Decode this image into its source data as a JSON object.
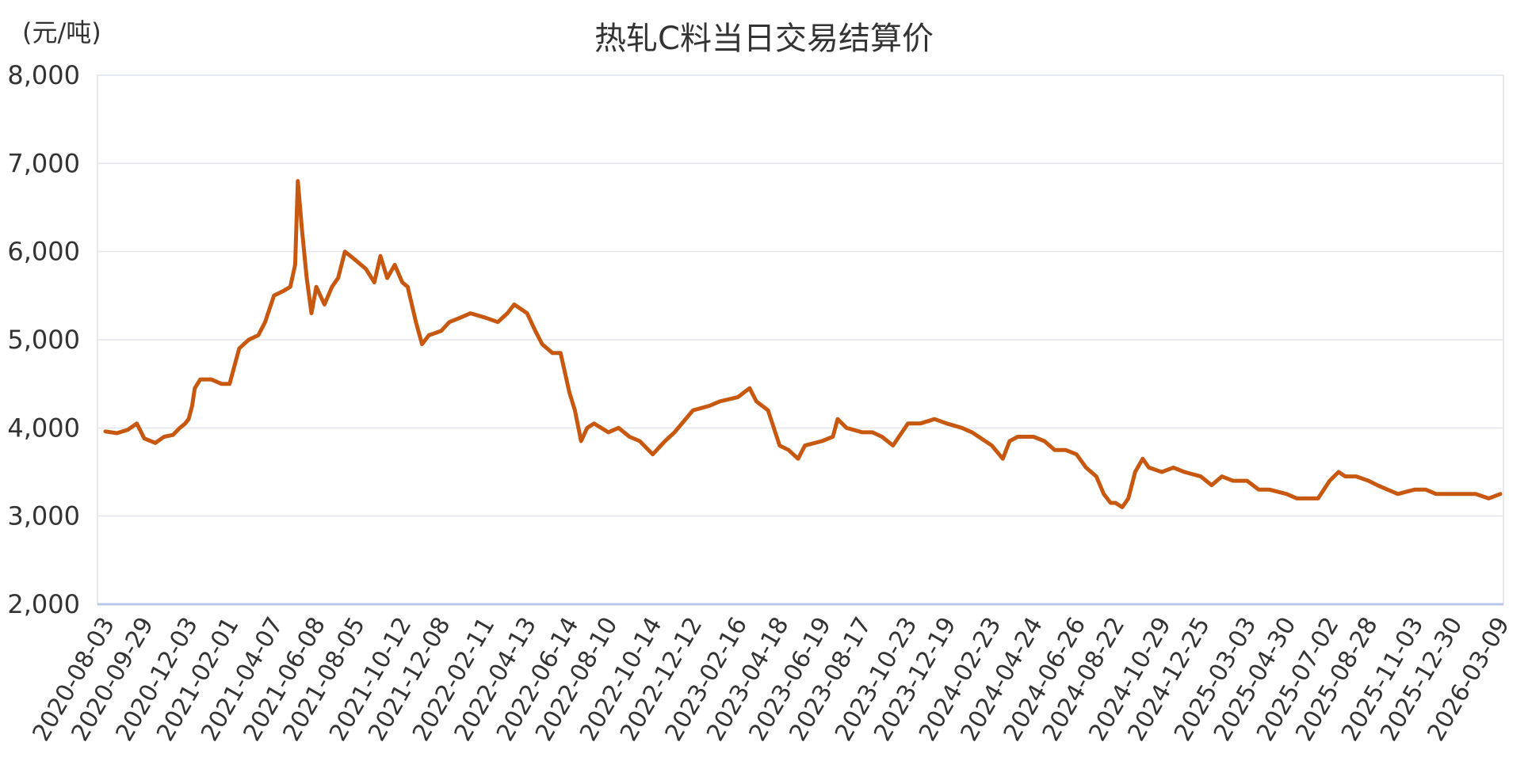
{
  "chart_data": {
    "type": "line",
    "title": "热轧C料当日交易结算价",
    "unit_label": "(元/吨)",
    "ylim": [
      2000,
      8000
    ],
    "y_ticks": [
      "2,000",
      "3,000",
      "4,000",
      "5,000",
      "6,000",
      "7,000",
      "8,000"
    ],
    "x_ticks": [
      "2020-08-03",
      "2020-09-29",
      "2020-12-03",
      "2021-02-01",
      "2021-04-07",
      "2021-06-08",
      "2021-08-05",
      "2021-10-12",
      "2021-12-08",
      "2022-02-11",
      "2022-04-13",
      "2022-06-14",
      "2022-08-10",
      "2022-10-14",
      "2022-12-12",
      "2023-02-16",
      "2023-04-18",
      "2023-06-19",
      "2023-08-17",
      "2023-10-23",
      "2023-12-19",
      "2024-02-23",
      "2024-04-24",
      "2024-06-26",
      "2024-08-22",
      "2024-10-29",
      "2024-12-25",
      "2025-03-03",
      "2025-04-30",
      "2025-07-02",
      "2025-08-28",
      "2025-11-03",
      "2025-12-30",
      "2026-03-09"
    ],
    "grid": true,
    "legend": "none",
    "line_color": "#c8580f",
    "series": [
      {
        "x": [
          "2020-08-03",
          "2020-08-20",
          "2020-09-05",
          "2020-09-18",
          "2020-09-29",
          "2020-10-15",
          "2020-10-28",
          "2020-11-10",
          "2020-11-20",
          "2020-11-28",
          "2020-12-03",
          "2020-12-08",
          "2020-12-12",
          "2020-12-20",
          "2021-01-05",
          "2021-01-20",
          "2021-02-01",
          "2021-02-15",
          "2021-03-01",
          "2021-03-15",
          "2021-03-25",
          "2021-04-07",
          "2021-04-20",
          "2021-05-01",
          "2021-05-08",
          "2021-05-12",
          "2021-05-18",
          "2021-05-25",
          "2021-06-01",
          "2021-06-08",
          "2021-06-20",
          "2021-07-01",
          "2021-07-10",
          "2021-07-20",
          "2021-08-05",
          "2021-08-20",
          "2021-09-01",
          "2021-09-10",
          "2021-09-20",
          "2021-10-01",
          "2021-10-12",
          "2021-10-20",
          "2021-11-01",
          "2021-11-10",
          "2021-11-20",
          "2021-12-08",
          "2021-12-20",
          "2022-01-05",
          "2022-01-20",
          "2022-02-11",
          "2022-03-01",
          "2022-03-15",
          "2022-03-25",
          "2022-04-13",
          "2022-04-25",
          "2022-05-05",
          "2022-05-20",
          "2022-06-01",
          "2022-06-14",
          "2022-06-22",
          "2022-07-01",
          "2022-07-10",
          "2022-07-20",
          "2022-08-10",
          "2022-08-25",
          "2022-09-10",
          "2022-09-25",
          "2022-10-14",
          "2022-10-20",
          "2022-11-01",
          "2022-11-15",
          "2022-12-12",
          "2023-01-05",
          "2023-01-20",
          "2023-02-16",
          "2023-03-05",
          "2023-03-15",
          "2023-04-01",
          "2023-04-18",
          "2023-05-01",
          "2023-05-15",
          "2023-05-25",
          "2023-06-19",
          "2023-07-05",
          "2023-07-12",
          "2023-07-25",
          "2023-08-17",
          "2023-09-01",
          "2023-09-15",
          "2023-10-01",
          "2023-10-23",
          "2023-11-10",
          "2023-12-01",
          "2023-12-19",
          "2024-01-10",
          "2024-01-25",
          "2024-02-23",
          "2024-03-10",
          "2024-03-20",
          "2024-04-01",
          "2024-04-24",
          "2024-05-10",
          "2024-05-25",
          "2024-06-10",
          "2024-06-26",
          "2024-07-10",
          "2024-07-25",
          "2024-08-05",
          "2024-08-15",
          "2024-08-22",
          "2024-09-01",
          "2024-09-10",
          "2024-09-20",
          "2024-10-01",
          "2024-10-10",
          "2024-10-29",
          "2024-11-15",
          "2024-12-01",
          "2024-12-25",
          "2025-01-10",
          "2025-01-25",
          "2025-02-10",
          "2025-03-03",
          "2025-03-20",
          "2025-04-05",
          "2025-04-30",
          "2025-05-15",
          "2025-06-01",
          "2025-06-15",
          "2025-07-02",
          "2025-07-15",
          "2025-07-25",
          "2025-08-10",
          "2025-08-28",
          "2025-09-10",
          "2025-09-25",
          "2025-10-10",
          "2025-11-03",
          "2025-11-20",
          "2025-12-05",
          "2025-12-30",
          "2026-01-15",
          "2026-02-01",
          "2026-02-20",
          "2026-03-09"
        ],
        "values": [
          3960,
          3940,
          3980,
          4050,
          3880,
          3830,
          3900,
          3920,
          4000,
          4050,
          4100,
          4250,
          4450,
          4550,
          4550,
          4500,
          4500,
          4900,
          5000,
          5050,
          5200,
          5500,
          5550,
          5600,
          5850,
          6800,
          6250,
          5700,
          5300,
          5600,
          5400,
          5600,
          5700,
          6000,
          5900,
          5800,
          5650,
          5950,
          5700,
          5850,
          5650,
          5600,
          5200,
          4950,
          5050,
          5100,
          5200,
          5250,
          5300,
          5250,
          5200,
          5300,
          5400,
          5300,
          5100,
          4950,
          4850,
          4850,
          4400,
          4200,
          3850,
          4000,
          4050,
          3950,
          4000,
          3900,
          3850,
          3700,
          3750,
          3850,
          3950,
          4200,
          4250,
          4300,
          4350,
          4450,
          4300,
          4200,
          3800,
          3750,
          3650,
          3800,
          3850,
          3900,
          4100,
          4000,
          3950,
          3950,
          3900,
          3800,
          4050,
          4050,
          4100,
          4050,
          4000,
          3950,
          3800,
          3650,
          3850,
          3900,
          3900,
          3850,
          3750,
          3750,
          3700,
          3550,
          3450,
          3250,
          3150,
          3150,
          3100,
          3200,
          3500,
          3650,
          3550,
          3500,
          3550,
          3500,
          3450,
          3350,
          3450,
          3400,
          3400,
          3300,
          3300,
          3250,
          3200,
          3200,
          3200,
          3400,
          3500,
          3450,
          3450,
          3400,
          3350,
          3300,
          3250,
          3300,
          3300,
          3250,
          3250,
          3250,
          3250,
          3200,
          3250
        ]
      }
    ]
  }
}
